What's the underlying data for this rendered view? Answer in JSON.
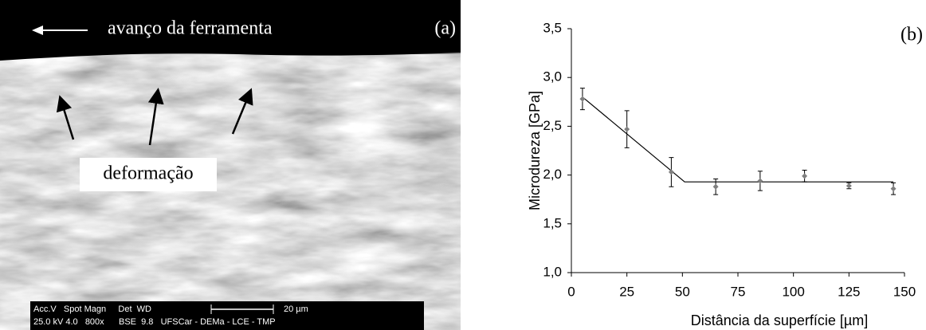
{
  "panel_a": {
    "label": "(a)",
    "direction_text": "avanço da ferramenta",
    "annotation": "deformação",
    "info_line1": "Acc.V   Spot Magn     Det  WD",
    "scale_text": "20 µm",
    "info_line2": "25.0 kV 4.0   800x      BSE  9.8   UFSCar - DEMa - LCE - TMP"
  },
  "chart_data": {
    "type": "scatter",
    "label": "(b)",
    "x_label": "Distância da superfície [µm]",
    "y_label": "Microdureza [GPa]",
    "x": [
      5,
      25,
      45,
      65,
      85,
      105,
      125,
      145
    ],
    "values": [
      2.78,
      2.47,
      2.03,
      1.88,
      1.94,
      1.99,
      1.89,
      1.86
    ],
    "errors": [
      0.11,
      0.19,
      0.15,
      0.08,
      0.1,
      0.06,
      0.03,
      0.06
    ],
    "color": "#7f7f7f",
    "trend_line": {
      "x": [
        5,
        51,
        145
      ],
      "values": [
        2.8,
        1.93,
        1.93
      ],
      "color": "#000000"
    },
    "xlim": [
      0,
      150
    ],
    "xticks": [
      0,
      25,
      50,
      75,
      100,
      125,
      150
    ],
    "ylim": [
      1.0,
      3.5
    ],
    "yticks": [
      {
        "value": 1.0,
        "label": "1,0"
      },
      {
        "value": 1.5,
        "label": "1,5"
      },
      {
        "value": 2.0,
        "label": "2,0"
      },
      {
        "value": 2.5,
        "label": "2,5"
      },
      {
        "value": 3.0,
        "label": "3,0"
      },
      {
        "value": 3.5,
        "label": "3,5"
      }
    ]
  }
}
